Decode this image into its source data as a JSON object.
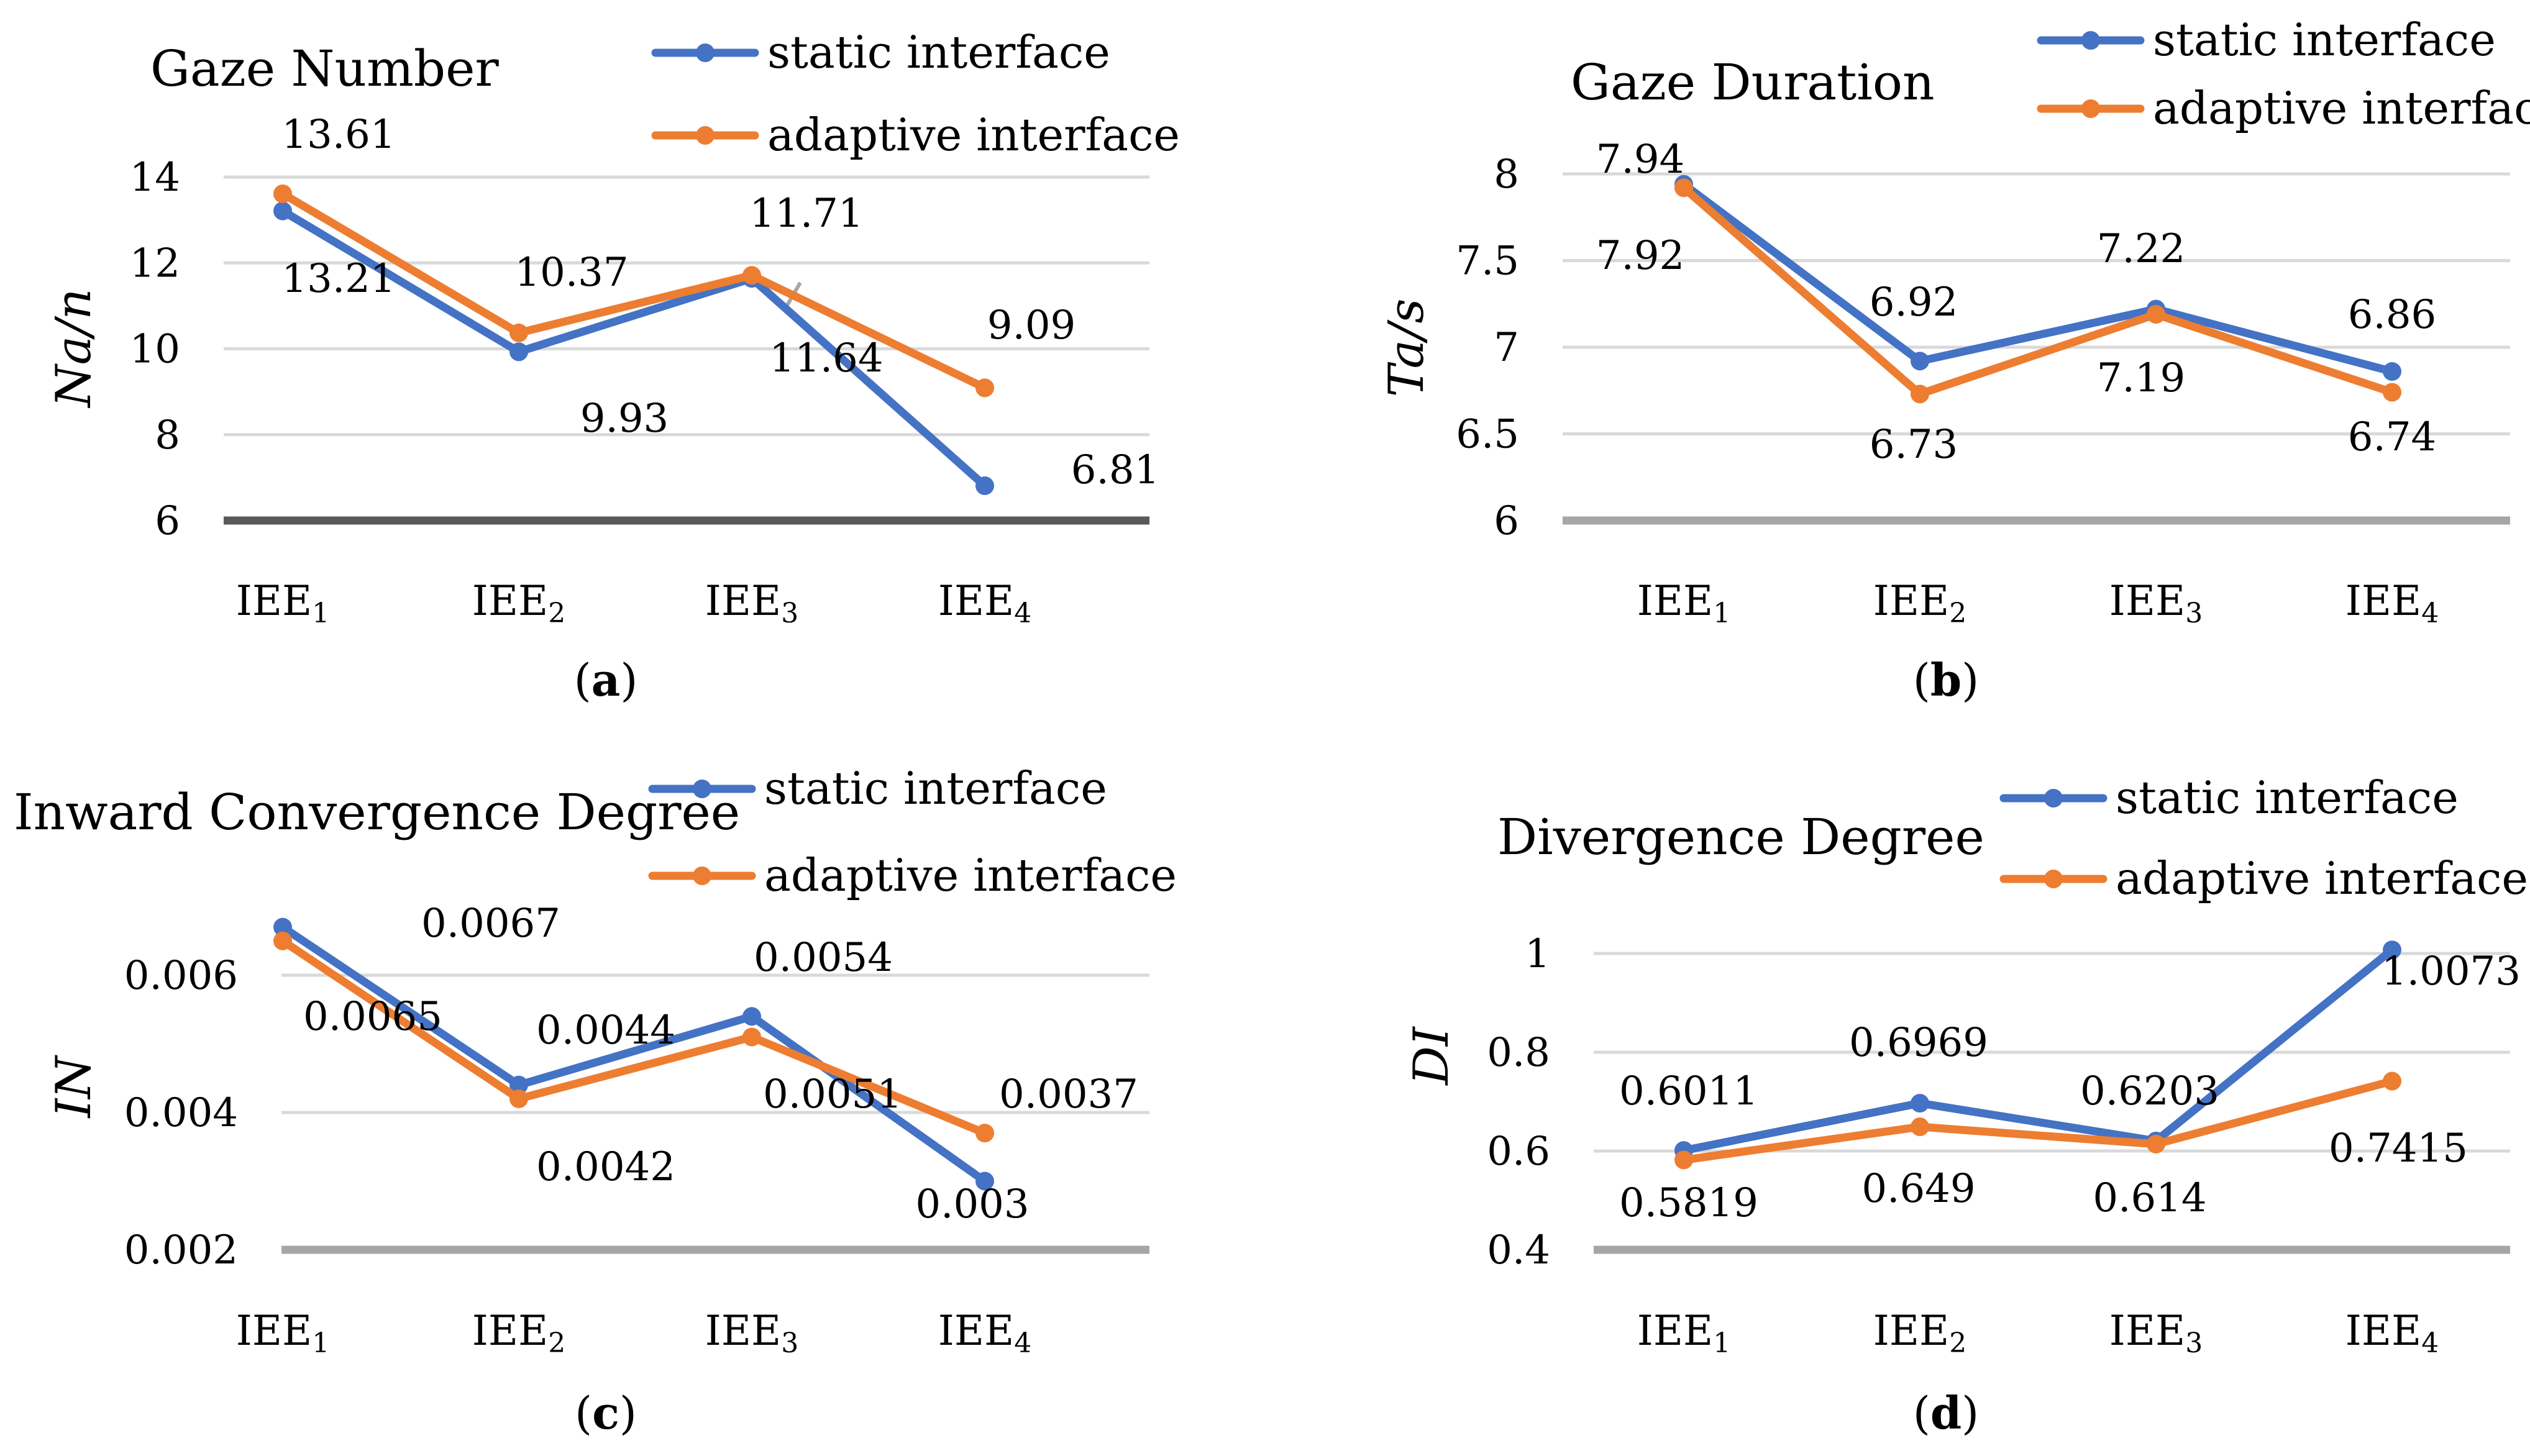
{
  "colors": {
    "static": "#4472c4",
    "adaptive": "#ed7d31",
    "grid": "#d9d9d9",
    "axis_a": "#595959",
    "axis": "#a6a6a6",
    "leader": "#a6a6a6"
  },
  "categories": [
    {
      "base": "IEE",
      "sub": "1"
    },
    {
      "base": "IEE",
      "sub": "2"
    },
    {
      "base": "IEE",
      "sub": "3"
    },
    {
      "base": "IEE",
      "sub": "4"
    }
  ],
  "chart_data": [
    {
      "type": "line",
      "panel": "a",
      "title": "Gaze Number",
      "ylabel": "Na/n",
      "ylim": [
        6,
        14
      ],
      "yticks": [
        6,
        8,
        10,
        12,
        14
      ],
      "ytick_labels": [
        "6",
        "8",
        "10",
        "12",
        "14"
      ],
      "legend": [
        "static interface",
        "adaptive interface"
      ],
      "series": [
        {
          "name": "static interface",
          "values": [
            13.21,
            9.93,
            11.64,
            6.81
          ],
          "labels": [
            "13.21",
            "9.93",
            "11.64",
            "6.81"
          ]
        },
        {
          "name": "adaptive interface",
          "values": [
            13.61,
            10.37,
            11.71,
            9.09
          ],
          "labels": [
            "13.61",
            "10.37",
            "11.71",
            "9.09"
          ]
        }
      ]
    },
    {
      "type": "line",
      "panel": "b",
      "title": "Gaze Duration",
      "ylabel": "Ta/s",
      "ylim": [
        6,
        8
      ],
      "yticks": [
        6,
        6.5,
        7,
        7.5,
        8
      ],
      "ytick_labels": [
        "6",
        "6.5",
        "7",
        "7.5",
        "8"
      ],
      "legend": [
        "static interface",
        "adaptive interface"
      ],
      "series": [
        {
          "name": "static interface",
          "values": [
            7.94,
            6.92,
            7.22,
            6.86
          ],
          "labels": [
            "7.94",
            "6.92",
            "7.22",
            "6.86"
          ]
        },
        {
          "name": "adaptive interface",
          "values": [
            7.92,
            6.73,
            7.19,
            6.74
          ],
          "labels": [
            "7.92",
            "6.73",
            "7.19",
            "6.74"
          ]
        }
      ]
    },
    {
      "type": "line",
      "panel": "c",
      "title": "Inward Convergence Degree",
      "ylabel": "IN",
      "ylim": [
        0.002,
        0.006
      ],
      "yticks": [
        0.002,
        0.004,
        0.006
      ],
      "ytick_labels": [
        "0.002",
        "0.004",
        "0.006"
      ],
      "legend": [
        "static interface",
        "adaptive interface"
      ],
      "series": [
        {
          "name": "static interface",
          "values": [
            0.0067,
            0.0044,
            0.0054,
            0.003
          ],
          "labels": [
            "0.0067",
            "0.0044",
            "0.0054",
            "0.003"
          ]
        },
        {
          "name": "adaptive interface",
          "values": [
            0.0065,
            0.0042,
            0.0051,
            0.0037
          ],
          "labels": [
            "0.0065",
            "0.0042",
            "0.0051",
            "0.0037"
          ]
        }
      ]
    },
    {
      "type": "line",
      "panel": "d",
      "title": "Divergence Degree",
      "ylabel": "DI",
      "ylim": [
        0.4,
        1
      ],
      "yticks": [
        0.4,
        0.6,
        0.8,
        1
      ],
      "ytick_labels": [
        "0.4",
        "0.6",
        "0.8",
        "1"
      ],
      "legend": [
        "static interface",
        "adaptive interface"
      ],
      "series": [
        {
          "name": "static interface",
          "values": [
            0.6011,
            0.6969,
            0.6203,
            1.0073
          ],
          "labels": [
            "0.6011",
            "0.6969",
            "0.6203",
            "1.0073"
          ]
        },
        {
          "name": "adaptive interface",
          "values": [
            0.5819,
            0.649,
            0.614,
            0.7415
          ],
          "labels": [
            "0.5819",
            "0.649",
            "0.614",
            "0.7415"
          ]
        }
      ]
    }
  ]
}
